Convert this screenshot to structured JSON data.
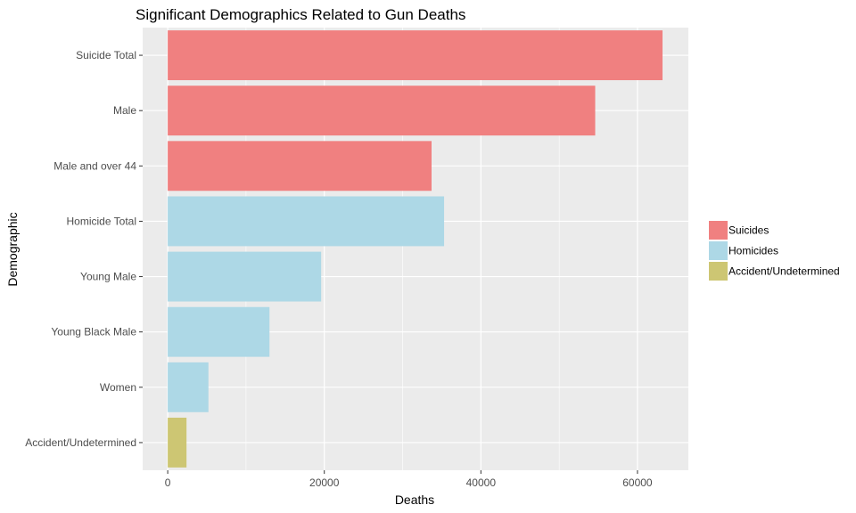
{
  "chart_data": {
    "type": "bar",
    "orientation": "horizontal",
    "title": "Significant Demographics Related to Gun Deaths",
    "xlabel": "Deaths",
    "ylabel": "Demographic",
    "xlim": [
      -3200,
      66500
    ],
    "xticks": [
      0,
      20000,
      40000,
      60000
    ],
    "xtick_labels": [
      "0",
      "20000",
      "40000",
      "60000"
    ],
    "grid": true,
    "legend_position": "right",
    "categories": [
      "Suicide Total",
      "Male",
      "Male and over 44",
      "Homicide Total",
      "Young Male",
      "Young Black Male",
      "Women",
      "Accident/Undetermined"
    ],
    "values": [
      63200,
      54600,
      33700,
      35300,
      19600,
      13000,
      5200,
      2400
    ],
    "groups": [
      "Suicides",
      "Suicides",
      "Suicides",
      "Homicides",
      "Homicides",
      "Homicides",
      "Homicides",
      "Accident/Undetermined"
    ],
    "legend": [
      {
        "name": "Suicides",
        "color": "#f08080"
      },
      {
        "name": "Homicides",
        "color": "#add8e6"
      },
      {
        "name": "Accident/Undetermined",
        "color": "#cdc673"
      }
    ],
    "panel_color": "#ebebeb",
    "grid_color": "#ffffff"
  }
}
